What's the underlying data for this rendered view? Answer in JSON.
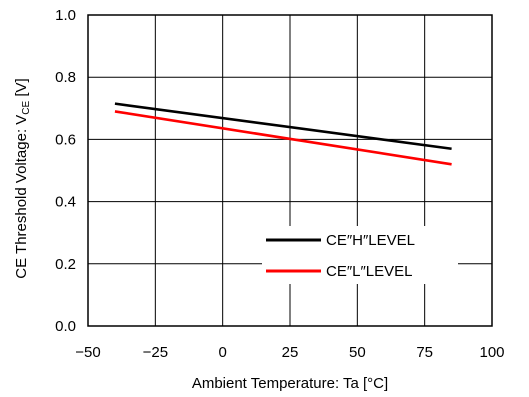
{
  "chart_data": {
    "type": "line",
    "title": "",
    "xlabel": "Ambient Temperature: Ta [°C]",
    "ylabel": {
      "prefix": "CE Threshold Voltage: V",
      "subscript": "CE",
      "suffix": " [V]"
    },
    "xlim": [
      -50,
      100
    ],
    "ylim": [
      0.0,
      1.0
    ],
    "xticks": [
      -50,
      -25,
      0,
      25,
      50,
      75,
      100
    ],
    "xtick_labels": [
      "−50",
      "−25",
      "0",
      "25",
      "50",
      "75",
      "100"
    ],
    "yticks": [
      0.0,
      0.2,
      0.4,
      0.6,
      0.8,
      1.0
    ],
    "ytick_labels": [
      "0.0",
      "0.2",
      "0.4",
      "0.6",
      "0.8",
      "1.0"
    ],
    "grid": true,
    "legend_position": "bottom-right",
    "series": [
      {
        "name": "CE″H″LEVEL",
        "color": "#000000",
        "x": [
          -40,
          85
        ],
        "y": [
          0.715,
          0.57
        ]
      },
      {
        "name": "CE″L″LEVEL",
        "color": "#ff0000",
        "x": [
          -40,
          85
        ],
        "y": [
          0.69,
          0.52
        ]
      }
    ]
  }
}
